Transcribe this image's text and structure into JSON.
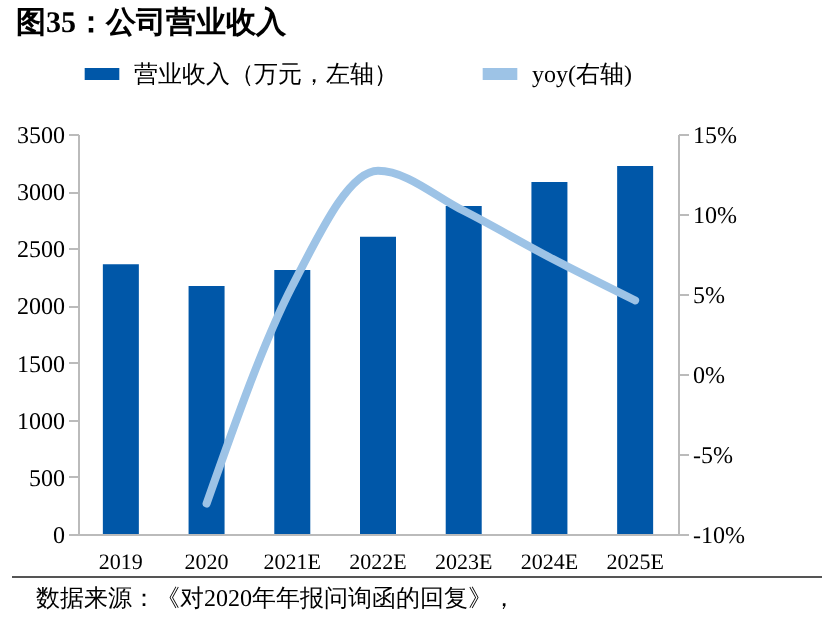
{
  "chart_data": {
    "type": "bar",
    "title": "图35：公司营业收入",
    "categories": [
      "2019",
      "2020",
      "2021E",
      "2022E",
      "2023E",
      "2024E",
      "2025E"
    ],
    "series": [
      {
        "name": "营业收入（万元，左轴）",
        "color": "#0057a8",
        "values": [
          2360,
          2170,
          2310,
          2600,
          2870,
          3080,
          3220
        ]
      },
      {
        "name": "yoy(右轴)",
        "type": "line",
        "axis": "y2",
        "color": "#9dc3e6",
        "values": [
          null,
          -8.1,
          5.5,
          12.7,
          10.2,
          7.3,
          4.6
        ]
      }
    ],
    "ylim": [
      0,
      3500
    ],
    "yticks": [
      0,
      500,
      1000,
      1500,
      2000,
      2500,
      3000,
      3500
    ],
    "y2lim": [
      -10,
      15
    ],
    "y2ticks": [
      {
        "value": -10,
        "label": "-10%"
      },
      {
        "value": -5,
        "label": "-5%"
      },
      {
        "value": 0,
        "label": "0%"
      },
      {
        "value": 5,
        "label": "5%"
      },
      {
        "value": 10,
        "label": "10%"
      },
      {
        "value": 15,
        "label": "15%"
      }
    ],
    "grid": false,
    "legend": "top",
    "marker": "none",
    "line_style": "solid",
    "annotations": [
      "数据来源：《对2020年年报问询函的回复》，"
    ]
  }
}
